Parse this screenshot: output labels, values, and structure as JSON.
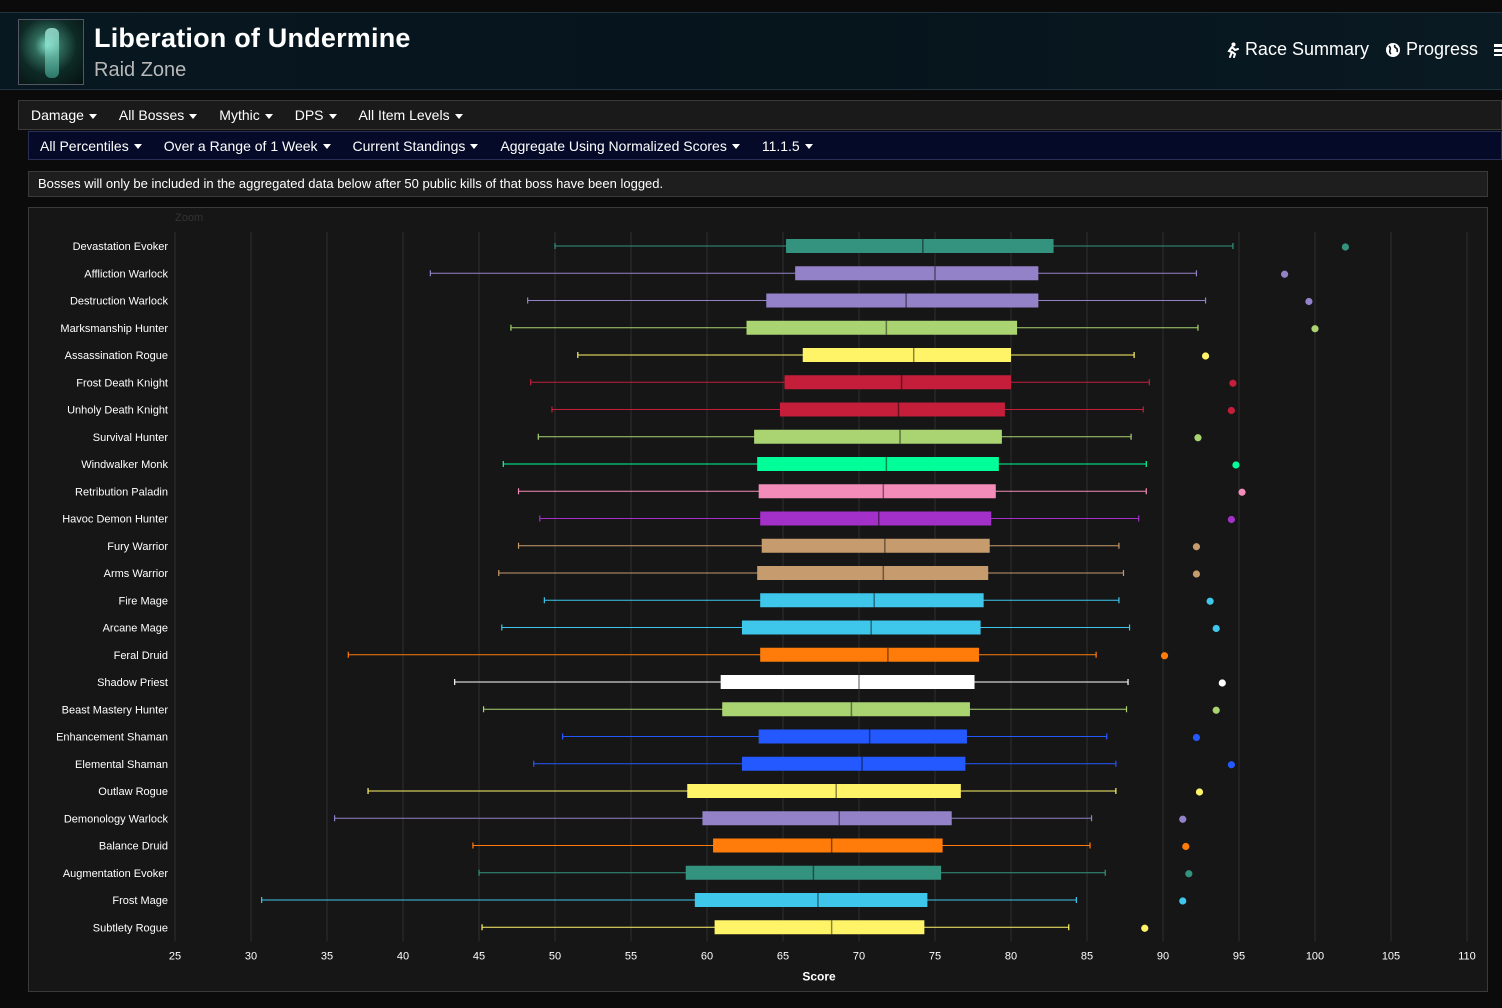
{
  "header": {
    "title": "Liberation of Undermine",
    "subtitle": "Raid Zone",
    "links": [
      {
        "label": "Race Summary",
        "icon": "runner-icon"
      },
      {
        "label": "Progress",
        "icon": "globe-icon"
      }
    ]
  },
  "filters_primary": [
    "Damage",
    "All Bosses",
    "Mythic",
    "DPS",
    "All Item Levels"
  ],
  "filters_secondary": [
    "All Percentiles",
    "Over a Range of 1 Week",
    "Current Standings",
    "Aggregate Using Normalized Scores",
    "11.1.5"
  ],
  "notice": "Bosses will only be included in the aggregated data below after 50 public kills of that boss have been logged.",
  "chart": {
    "zoom_label": "Zoom"
  },
  "chart_data": {
    "type": "boxplot",
    "orientation": "horizontal",
    "xlabel": "Score",
    "xlim": [
      25,
      110
    ],
    "xticks": [
      25,
      30,
      35,
      40,
      45,
      50,
      55,
      60,
      65,
      70,
      75,
      80,
      85,
      90,
      95,
      100,
      105,
      110
    ],
    "grid": true,
    "series": [
      {
        "name": "Devastation Evoker",
        "color": "#33937f",
        "min": 50.0,
        "q1": 65.2,
        "median": 74.2,
        "q3": 82.8,
        "max": 94.6,
        "outlier": 102.0
      },
      {
        "name": "Affliction Warlock",
        "color": "#9482c9",
        "min": 41.8,
        "q1": 65.8,
        "median": 75.0,
        "q3": 81.8,
        "max": 92.2,
        "outlier": 98.0
      },
      {
        "name": "Destruction Warlock",
        "color": "#9482c9",
        "min": 48.2,
        "q1": 63.9,
        "median": 73.1,
        "q3": 81.8,
        "max": 92.8,
        "outlier": 99.6
      },
      {
        "name": "Marksmanship Hunter",
        "color": "#aad372",
        "min": 47.1,
        "q1": 62.6,
        "median": 71.8,
        "q3": 80.4,
        "max": 92.3,
        "outlier": 100.0
      },
      {
        "name": "Assassination Rogue",
        "color": "#fff468",
        "min": 51.5,
        "q1": 66.3,
        "median": 73.6,
        "q3": 80.0,
        "max": 88.1,
        "outlier": 92.8
      },
      {
        "name": "Frost Death Knight",
        "color": "#c41e3a",
        "min": 48.4,
        "q1": 65.1,
        "median": 72.8,
        "q3": 80.0,
        "max": 89.1,
        "outlier": 94.6
      },
      {
        "name": "Unholy Death Knight",
        "color": "#c41e3a",
        "min": 49.8,
        "q1": 64.8,
        "median": 72.6,
        "q3": 79.6,
        "max": 88.7,
        "outlier": 94.5
      },
      {
        "name": "Survival Hunter",
        "color": "#aad372",
        "min": 48.9,
        "q1": 63.1,
        "median": 72.7,
        "q3": 79.4,
        "max": 87.9,
        "outlier": 92.3
      },
      {
        "name": "Windwalker Monk",
        "color": "#00ff98",
        "min": 46.6,
        "q1": 63.3,
        "median": 71.8,
        "q3": 79.2,
        "max": 88.9,
        "outlier": 94.8
      },
      {
        "name": "Retribution Paladin",
        "color": "#f48cba",
        "min": 47.6,
        "q1": 63.4,
        "median": 71.6,
        "q3": 79.0,
        "max": 88.9,
        "outlier": 95.2
      },
      {
        "name": "Havoc Demon Hunter",
        "color": "#a330c9",
        "min": 49.0,
        "q1": 63.5,
        "median": 71.3,
        "q3": 78.7,
        "max": 88.4,
        "outlier": 94.5
      },
      {
        "name": "Fury Warrior",
        "color": "#c69b6d",
        "min": 47.6,
        "q1": 63.6,
        "median": 71.7,
        "q3": 78.6,
        "max": 87.1,
        "outlier": 92.2
      },
      {
        "name": "Arms Warrior",
        "color": "#c69b6d",
        "min": 46.3,
        "q1": 63.3,
        "median": 71.6,
        "q3": 78.5,
        "max": 87.4,
        "outlier": 92.2
      },
      {
        "name": "Fire Mage",
        "color": "#3fc7eb",
        "min": 49.3,
        "q1": 63.5,
        "median": 71.0,
        "q3": 78.2,
        "max": 87.1,
        "outlier": 93.1
      },
      {
        "name": "Arcane Mage",
        "color": "#3fc7eb",
        "min": 46.5,
        "q1": 62.3,
        "median": 70.8,
        "q3": 78.0,
        "max": 87.8,
        "outlier": 93.5
      },
      {
        "name": "Feral Druid",
        "color": "#ff7c0a",
        "min": 36.4,
        "q1": 63.5,
        "median": 71.9,
        "q3": 77.9,
        "max": 85.6,
        "outlier": 90.1
      },
      {
        "name": "Shadow Priest",
        "color": "#ffffff",
        "min": 43.4,
        "q1": 60.9,
        "median": 70.0,
        "q3": 77.6,
        "max": 87.7,
        "outlier": 93.9
      },
      {
        "name": "Beast Mastery Hunter",
        "color": "#aad372",
        "min": 45.3,
        "q1": 61.0,
        "median": 69.5,
        "q3": 77.3,
        "max": 87.6,
        "outlier": 93.5
      },
      {
        "name": "Enhancement Shaman",
        "color": "#2459ff",
        "min": 50.5,
        "q1": 63.4,
        "median": 70.7,
        "q3": 77.1,
        "max": 86.3,
        "outlier": 92.2
      },
      {
        "name": "Elemental Shaman",
        "color": "#2459ff",
        "min": 48.6,
        "q1": 62.3,
        "median": 70.2,
        "q3": 77.0,
        "max": 86.9,
        "outlier": 94.5
      },
      {
        "name": "Outlaw Rogue",
        "color": "#fff468",
        "min": 37.7,
        "q1": 58.7,
        "median": 68.5,
        "q3": 76.7,
        "max": 86.9,
        "outlier": 92.4
      },
      {
        "name": "Demonology Warlock",
        "color": "#9482c9",
        "min": 35.5,
        "q1": 59.7,
        "median": 68.7,
        "q3": 76.1,
        "max": 85.3,
        "outlier": 91.3
      },
      {
        "name": "Balance Druid",
        "color": "#ff7c0a",
        "min": 44.6,
        "q1": 60.4,
        "median": 68.2,
        "q3": 75.5,
        "max": 85.2,
        "outlier": 91.5
      },
      {
        "name": "Augmentation Evoker",
        "color": "#33937f",
        "min": 45.0,
        "q1": 58.6,
        "median": 67.0,
        "q3": 75.4,
        "max": 86.2,
        "outlier": 91.7
      },
      {
        "name": "Frost Mage",
        "color": "#3fc7eb",
        "min": 30.7,
        "q1": 59.2,
        "median": 67.3,
        "q3": 74.5,
        "max": 84.3,
        "outlier": 91.3
      },
      {
        "name": "Subtlety Rogue",
        "color": "#fff468",
        "min": 45.2,
        "q1": 60.5,
        "median": 68.2,
        "q3": 74.3,
        "max": 83.8,
        "outlier": 88.8
      }
    ]
  }
}
